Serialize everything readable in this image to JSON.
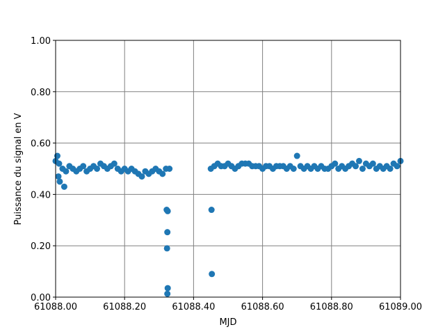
{
  "chart_data": {
    "type": "scatter",
    "xlabel": "MJD",
    "ylabel": "Puissance du signal en V",
    "xlim": [
      61088.0,
      61089.0
    ],
    "ylim": [
      0,
      1
    ],
    "xticks": [
      {
        "value": 61088.0,
        "label": "61088.00"
      },
      {
        "value": 61088.2,
        "label": "61088.20"
      },
      {
        "value": 61088.4,
        "label": "61088.40"
      },
      {
        "value": 61088.6,
        "label": "61088.60"
      },
      {
        "value": 61088.8,
        "label": "61088.80"
      },
      {
        "value": 61089.0,
        "label": "61089.00"
      }
    ],
    "yticks": [
      {
        "value": 0,
        "label": "0.00"
      },
      {
        "value": 0.2,
        "label": "0.20"
      },
      {
        "value": 0.4,
        "label": "0.40"
      },
      {
        "value": 0.6,
        "label": "0.60"
      },
      {
        "value": 0.8,
        "label": "0.80"
      },
      {
        "value": 1,
        "label": "1.00"
      }
    ],
    "grid": true,
    "series": [
      {
        "color": "#1f77b4",
        "x": [
          61088.0,
          61088.01,
          61088.02,
          61088.03,
          61088.04,
          61088.05,
          61088.06,
          61088.07,
          61088.08,
          61088.09,
          61088.1,
          61088.11,
          61088.12,
          61088.13,
          61088.14,
          61088.15,
          61088.16,
          61088.17,
          61088.18,
          61088.19,
          61088.2,
          61088.21,
          61088.22,
          61088.23,
          61088.24,
          61088.25,
          61088.26,
          61088.27,
          61088.28,
          61088.29,
          61088.3,
          61088.31,
          61088.32,
          61088.33,
          61088.005,
          61088.012,
          61088.025,
          61088.008,
          61088.322,
          61088.325,
          61088.324,
          61088.323,
          61088.325,
          61088.324,
          61088.452,
          61088.453,
          61088.45,
          61088.46,
          61088.47,
          61088.48,
          61088.49,
          61088.5,
          61088.51,
          61088.52,
          61088.53,
          61088.54,
          61088.55,
          61088.56,
          61088.57,
          61088.58,
          61088.59,
          61088.6,
          61088.61,
          61088.62,
          61088.63,
          61088.64,
          61088.65,
          61088.66,
          61088.67,
          61088.68,
          61088.69,
          61088.7,
          61088.71,
          61088.72,
          61088.73,
          61088.74,
          61088.75,
          61088.76,
          61088.77,
          61088.78,
          61088.79,
          61088.8,
          61088.81,
          61088.82,
          61088.83,
          61088.84,
          61088.85,
          61088.86,
          61088.87,
          61088.88,
          61088.89,
          61088.9,
          61088.91,
          61088.92,
          61088.93,
          61088.94,
          61088.95,
          61088.96,
          61088.97,
          61088.98,
          61088.99,
          61089.0
        ],
        "values": [
          0.53,
          0.52,
          0.5,
          0.49,
          0.51,
          0.5,
          0.49,
          0.5,
          0.51,
          0.49,
          0.5,
          0.51,
          0.5,
          0.52,
          0.51,
          0.5,
          0.51,
          0.52,
          0.5,
          0.49,
          0.5,
          0.49,
          0.5,
          0.49,
          0.48,
          0.47,
          0.49,
          0.48,
          0.49,
          0.5,
          0.49,
          0.48,
          0.5,
          0.5,
          0.55,
          0.45,
          0.43,
          0.47,
          0.34,
          0.335,
          0.253,
          0.19,
          0.035,
          0.013,
          0.34,
          0.09,
          0.5,
          0.51,
          0.52,
          0.51,
          0.51,
          0.52,
          0.51,
          0.5,
          0.51,
          0.52,
          0.52,
          0.52,
          0.51,
          0.51,
          0.51,
          0.5,
          0.51,
          0.51,
          0.5,
          0.51,
          0.51,
          0.51,
          0.5,
          0.51,
          0.5,
          0.55,
          0.51,
          0.5,
          0.51,
          0.5,
          0.51,
          0.5,
          0.51,
          0.5,
          0.5,
          0.51,
          0.52,
          0.5,
          0.51,
          0.5,
          0.51,
          0.52,
          0.51,
          0.53,
          0.5,
          0.52,
          0.51,
          0.52,
          0.5,
          0.51,
          0.5,
          0.51,
          0.5,
          0.52,
          0.51,
          0.53
        ]
      }
    ]
  }
}
